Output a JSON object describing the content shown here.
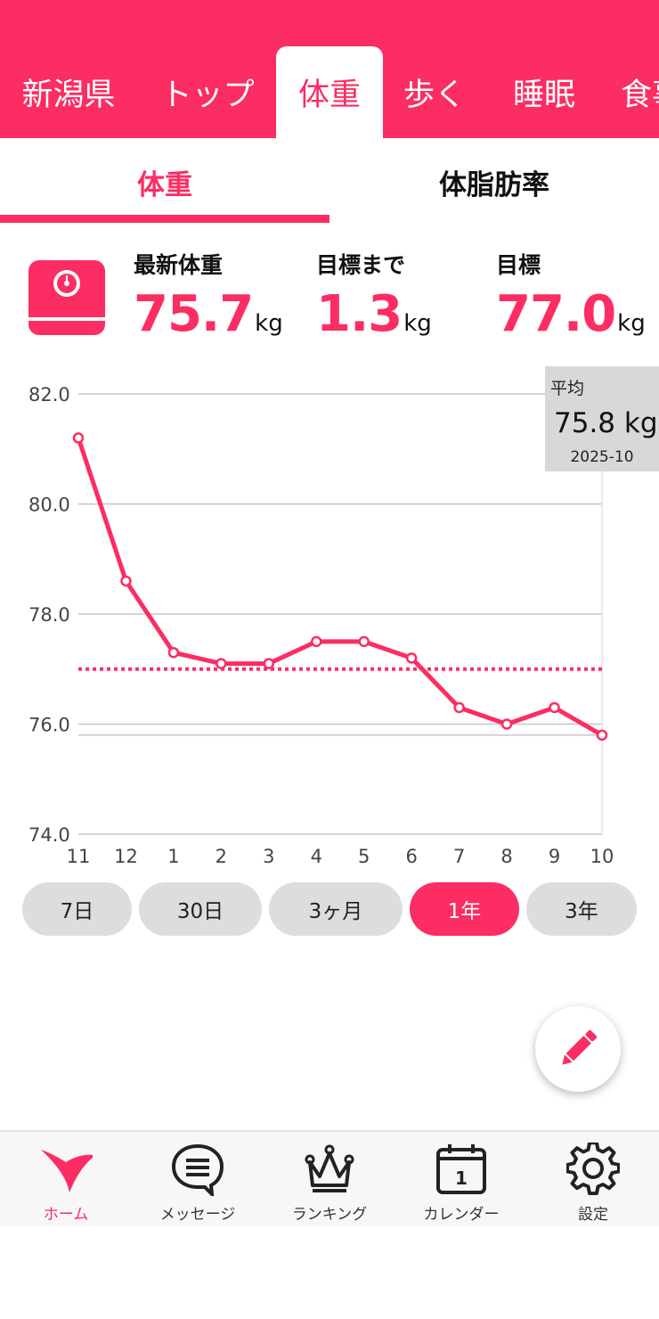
{
  "colors": {
    "accent": "#fb2d63",
    "tooltip_bg": "#d8d8d8",
    "pill_bg": "#dddddd"
  },
  "top_tabs": [
    {
      "label": "新潟県",
      "active": false
    },
    {
      "label": "トップ",
      "active": false
    },
    {
      "label": "体重",
      "active": true
    },
    {
      "label": "歩く",
      "active": false
    },
    {
      "label": "睡眠",
      "active": false
    },
    {
      "label": "食事",
      "active": false
    }
  ],
  "sub_tabs": [
    {
      "label": "体重",
      "active": true
    },
    {
      "label": "体脂肪率",
      "active": false
    }
  ],
  "stats": {
    "icon": "scale-icon",
    "latest": {
      "label": "最新体重",
      "value": "75.7",
      "unit": "kg"
    },
    "to_goal": {
      "label": "目標まで",
      "value": "1.3",
      "unit": "kg"
    },
    "goal": {
      "label": "目標",
      "value": "77.0",
      "unit": "kg"
    }
  },
  "chart_data": {
    "type": "line",
    "categories": [
      "11",
      "12",
      "1",
      "2",
      "3",
      "4",
      "5",
      "6",
      "7",
      "8",
      "9",
      "10"
    ],
    "values": [
      81.2,
      78.6,
      77.3,
      77.1,
      77.1,
      77.5,
      77.5,
      77.2,
      76.3,
      76.0,
      76.3,
      75.8
    ],
    "y_ticks": [
      "82.0",
      "80.0",
      "78.0",
      "76.0",
      "74.0"
    ],
    "ylim": [
      74.0,
      82.0
    ],
    "goal_line": 77.0,
    "grid": true,
    "line_color": "#fb2d63"
  },
  "tooltip": {
    "label": "平均",
    "value": "75.8",
    "unit": "kg",
    "date": "2025-10"
  },
  "periods": [
    {
      "label": "7日",
      "active": false
    },
    {
      "label": "30日",
      "active": false
    },
    {
      "label": "3ヶ月",
      "active": false
    },
    {
      "label": "1年",
      "active": true
    },
    {
      "label": "3年",
      "active": false
    }
  ],
  "fab": {
    "icon": "pencil-icon"
  },
  "bottom_nav": [
    {
      "label": "ホーム",
      "icon": "home-icon",
      "active": true
    },
    {
      "label": "メッセージ",
      "icon": "message-icon",
      "active": false
    },
    {
      "label": "ランキング",
      "icon": "crown-icon",
      "active": false
    },
    {
      "label": "カレンダー",
      "icon": "calendar-icon",
      "calendar_day": "1",
      "active": false
    },
    {
      "label": "設定",
      "icon": "gear-icon",
      "active": false
    }
  ]
}
